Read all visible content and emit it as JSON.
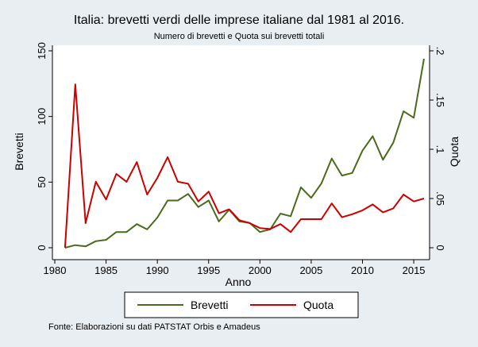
{
  "chart_data": {
    "type": "line",
    "title": "Italia: brevetti verdi delle imprese italiane dal 1981 al 2016.",
    "subtitle": "Numero di brevetti e Quota sui brevetti totali",
    "xlabel": "Anno",
    "ylabel": "Brevetti",
    "y2label": "Quota",
    "xlim": [
      1980,
      2016
    ],
    "ylim": [
      0,
      150
    ],
    "y2lim": [
      0,
      0.2
    ],
    "xticks": [
      "1980",
      "1985",
      "1990",
      "1995",
      "2000",
      "2005",
      "2010",
      "2015"
    ],
    "yticks": [
      "0",
      "50",
      "100",
      "150"
    ],
    "y2ticks": [
      "0",
      ".05",
      ".1",
      ".15",
      ".2"
    ],
    "grid": false,
    "legend_position": "bottom",
    "x": [
      1981,
      1982,
      1983,
      1984,
      1985,
      1986,
      1987,
      1988,
      1989,
      1990,
      1991,
      1992,
      1993,
      1994,
      1995,
      1996,
      1997,
      1998,
      1999,
      2000,
      2001,
      2002,
      2003,
      2004,
      2005,
      2006,
      2007,
      2008,
      2009,
      2010,
      2011,
      2012,
      2013,
      2014,
      2015,
      2016
    ],
    "series": [
      {
        "name": "Brevetti",
        "axis": "left",
        "color": "#4c6a1c",
        "values": [
          0,
          2,
          1,
          5,
          6,
          12,
          12,
          18,
          14,
          23,
          36,
          36,
          41,
          31,
          36,
          20,
          29,
          20,
          19,
          12,
          14,
          26,
          24,
          46,
          38,
          49,
          68,
          55,
          57,
          74,
          85,
          67,
          80,
          104,
          99,
          144
        ]
      },
      {
        "name": "Quota",
        "axis": "right",
        "color": "#cc0000",
        "values": [
          0,
          0.166,
          0.025,
          0.067,
          0.049,
          0.075,
          0.067,
          0.087,
          0.054,
          0.071,
          0.092,
          0.067,
          0.065,
          0.047,
          0.057,
          0.035,
          0.039,
          0.028,
          0.025,
          0.02,
          0.019,
          0.024,
          0.016,
          0.029,
          0.029,
          0.029,
          0.045,
          0.031,
          0.034,
          0.038,
          0.044,
          0.036,
          0.04,
          0.054,
          0.047,
          0.05
        ]
      }
    ],
    "note": "Fonte: Elaborazioni su dati PATSTAT Orbis e Amadeus"
  }
}
